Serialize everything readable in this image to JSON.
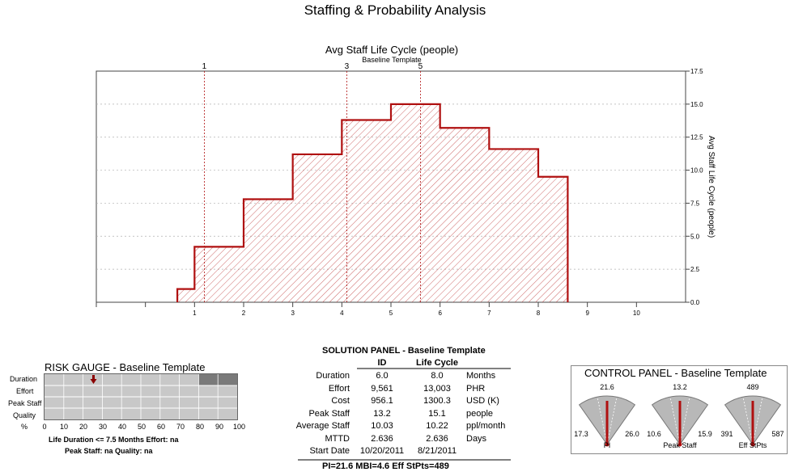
{
  "page_title": "Staffing & Probability Analysis",
  "chart_data": {
    "type": "area",
    "title": "Avg Staff Life Cycle (people)",
    "subtitle": "Baseline Template",
    "ylabel": "Avg Staff Life Cycle (people)",
    "xlim": [
      -1,
      11
    ],
    "ylim": [
      0,
      17.5
    ],
    "x_ticks": [
      "1",
      "2",
      "3",
      "4",
      "5",
      "6",
      "7",
      "8",
      "9",
      "10"
    ],
    "y_ticks": [
      "0.0",
      "2.5",
      "5.0",
      "7.5",
      "10.0",
      "12.5",
      "15.0",
      "17.5"
    ],
    "steps": [
      {
        "x0": 0.65,
        "x1": 1.0,
        "y": 1.0
      },
      {
        "x0": 1.0,
        "x1": 2.0,
        "y": 4.2
      },
      {
        "x0": 2.0,
        "x1": 3.0,
        "y": 7.8
      },
      {
        "x0": 3.0,
        "x1": 4.0,
        "y": 11.2
      },
      {
        "x0": 4.0,
        "x1": 5.0,
        "y": 13.8
      },
      {
        "x0": 5.0,
        "x1": 6.0,
        "y": 15.0
      },
      {
        "x0": 6.0,
        "x1": 7.0,
        "y": 13.2
      },
      {
        "x0": 7.0,
        "x1": 8.0,
        "y": 11.6
      },
      {
        "x0": 8.0,
        "x1": 8.6,
        "y": 9.5
      }
    ],
    "milestones": [
      {
        "label": "1",
        "x": 1.2
      },
      {
        "label": "3",
        "x": 4.1
      },
      {
        "label": "5",
        "x": 5.6
      }
    ],
    "color": "#b01010",
    "grid": true
  },
  "risk_gauge": {
    "title": "RISK GAUGE - Baseline Template",
    "rows": [
      "Duration",
      "Effort",
      "Peak Staff",
      "Quality"
    ],
    "pct_label": "%",
    "ticks": [
      "0",
      "10",
      "20",
      "30",
      "40",
      "50",
      "60",
      "70",
      "80",
      "90",
      "100"
    ],
    "duration_marker_pct": 25,
    "duration_risk_start_pct": 80,
    "footer1": "Life Duration  <=  7.5 Months   Effort:  na",
    "footer2": "Peak Staff:  na   Quality:  na",
    "marker_color": "#8b0000"
  },
  "solution_panel": {
    "title": "SOLUTION PANEL - Baseline Template",
    "col_id": "ID",
    "col_lc": "Life Cycle",
    "rows": [
      {
        "label": "Duration",
        "id": "6.0",
        "lc": "8.0",
        "unit": "Months"
      },
      {
        "label": "Effort",
        "id": "9,561",
        "lc": "13,003",
        "unit": "PHR"
      },
      {
        "label": "Cost",
        "id": "956.1",
        "lc": "1300.3",
        "unit": "USD (K)"
      },
      {
        "label": "Peak Staff",
        "id": "13.2",
        "lc": "15.1",
        "unit": "people"
      },
      {
        "label": "Average Staff",
        "id": "10.03",
        "lc": "10.22",
        "unit": "ppl/month"
      },
      {
        "label": "MTTD",
        "id": "2.636",
        "lc": "2.636",
        "unit": "Days"
      },
      {
        "label": "Start Date",
        "id": "10/20/2011",
        "lc": "8/21/2011",
        "unit": ""
      }
    ],
    "footer": "PI=21.6    MBI=4.6    Eff StPts=489"
  },
  "control_panel": {
    "title": "CONTROL PANEL - Baseline Template",
    "gauges": [
      {
        "name": "PI",
        "value": "21.6",
        "min": "17.3",
        "max": "26.0",
        "fraction": 0.5
      },
      {
        "name": "Peak Staff",
        "value": "13.2",
        "min": "10.6",
        "max": "15.9",
        "fraction": 0.5
      },
      {
        "name": "Eff StPts",
        "value": "489",
        "min": "391",
        "max": "587",
        "fraction": 0.5
      }
    ],
    "needle_color": "#b01010"
  }
}
